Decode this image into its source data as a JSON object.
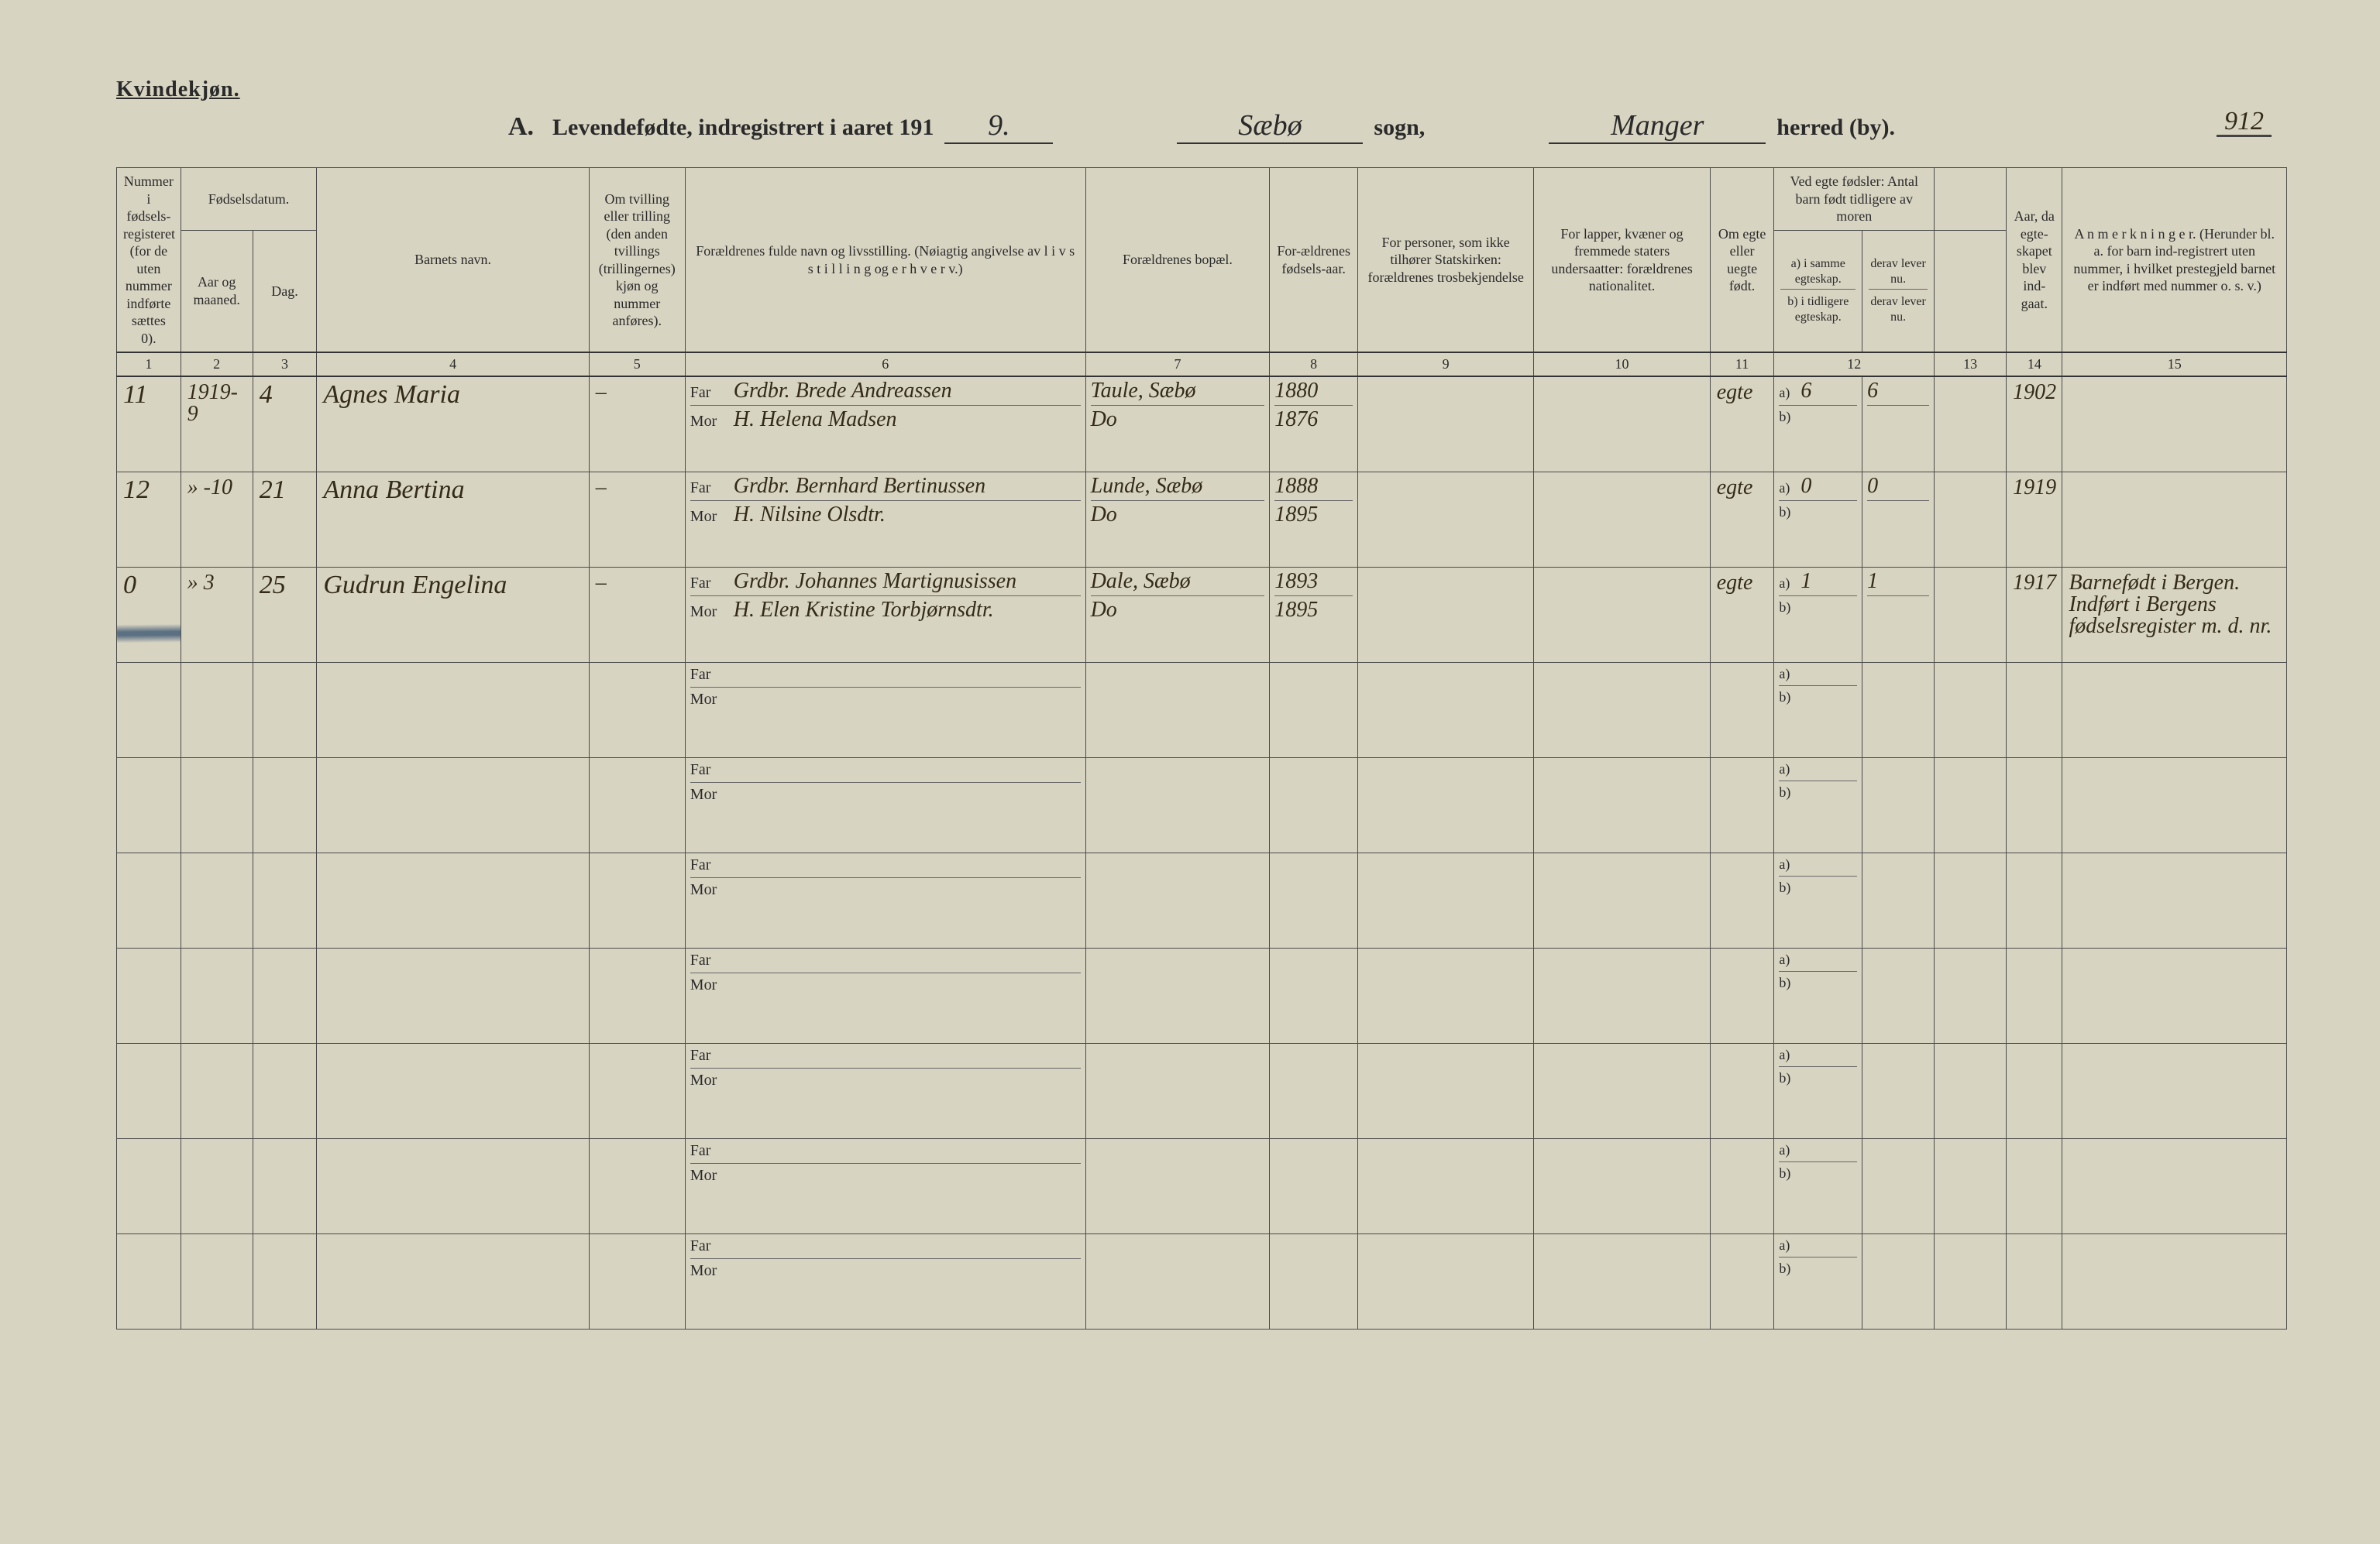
{
  "corner_label": "Kvindekjøn.",
  "title": {
    "A": "A.",
    "main": "Levendefødte, indregistrert i aaret 191",
    "year_suffix": "9.",
    "sogn_value": "Sæbø",
    "sogn_label": "sogn,",
    "herred_value": "Manger",
    "herred_label": "herred (by)."
  },
  "page_number": "912",
  "headers": {
    "c1": "Nummer i fødsels-registeret (for de uten nummer indførte sættes 0).",
    "c_dob_group": "Fødselsdatum.",
    "c2": "Aar og maaned.",
    "c3": "Dag.",
    "c4": "Barnets navn.",
    "c5": "Om tvilling eller trilling (den anden tvillings (trillingernes) kjøn og nummer anføres).",
    "c6": "Forældrenes fulde navn og livsstilling. (Nøiagtig angivelse av l i v s s t i l l i n g og e r h v e r v.)",
    "c7": "Forældrenes bopæl.",
    "c8": "For-ældrenes fødsels-aar.",
    "c9": "For personer, som ikke tilhører Statskirken: forældrenes trosbekjendelse",
    "c10": "For lapper, kvæner og fremmede staters undersaatter: forældrenes nationalitet.",
    "c11": "Om egte eller uegte født.",
    "c12_group": "Ved egte fødsler: Antal barn født tidligere av moren",
    "c12a": "a) i samme egteskap.",
    "c12b": "b) i tidligere egteskap.",
    "c13_group_blank": "",
    "c13a": "derav lever nu.",
    "c13b": "derav lever nu.",
    "c14": "Aar, da egte-skapet blev ind-gaat.",
    "c15": "A n m e r k n i n g e r. (Herunder bl. a. for barn ind-registrert uten nummer, i hvilket prestegjeld barnet er indført med nummer o. s. v.)"
  },
  "parent_labels": {
    "far": "Far",
    "mor": "Mor"
  },
  "ab_labels": {
    "a": "a)",
    "b": "b)"
  },
  "colnums": [
    "1",
    "2",
    "3",
    "4",
    "5",
    "6",
    "7",
    "8",
    "9",
    "10",
    "11",
    "12",
    "",
    "13",
    "14",
    "15"
  ],
  "entries": [
    {
      "num": "11",
      "year_month": "1919-9",
      "day": "4",
      "name": "Agnes Maria",
      "twin": "–",
      "far": "Grdbr. Brede Andreassen",
      "mor": "H. Helena Madsen",
      "bopel_far": "Taule, Sæbø",
      "bopel_mor": "Do",
      "faryear": "1880",
      "moryear": "1876",
      "c9": "",
      "c10": "",
      "legit": "egte",
      "a12": "6",
      "b12": "",
      "a13": "6",
      "b13": "",
      "c14": "1902",
      "remarks": ""
    },
    {
      "num": "12",
      "year_month": "» -10",
      "day": "21",
      "name": "Anna Bertina",
      "twin": "–",
      "far": "Grdbr. Bernhard Bertinussen",
      "mor": "H. Nilsine Olsdtr.",
      "bopel_far": "Lunde, Sæbø",
      "bopel_mor": "Do",
      "faryear": "1888",
      "moryear": "1895",
      "c9": "",
      "c10": "",
      "legit": "egte",
      "a12": "0",
      "b12": "",
      "a13": "0",
      "b13": "",
      "c14": "1919",
      "remarks": ""
    },
    {
      "struck": true,
      "num": "0",
      "year_month": "» 3",
      "day": "25",
      "name": "Gudrun Engelina",
      "twin": "–",
      "far": "Grdbr. Johannes Martignusissen",
      "mor": "H. Elen Kristine Torbjørnsdtr.",
      "bopel_far": "Dale, Sæbø",
      "bopel_mor": "Do",
      "faryear": "1893",
      "moryear": "1895",
      "c9": "",
      "c10": "",
      "legit": "egte",
      "a12": "1",
      "b12": "",
      "a13": "1",
      "b13": "",
      "c14": "1917",
      "remarks": "Barnefødt i Bergen. Indført i Bergens fødselsregister m. d. nr."
    }
  ],
  "blank_rows": 7,
  "style": {
    "background_color": "#d8d4c2",
    "ink_color": "#2a2a2a",
    "hand_color": "#332a18",
    "border_color": "#4a4a4a",
    "strike_color": "rgba(70,95,120,0.85)",
    "title_fontsize_pt": 22,
    "header_fontsize_pt": 13,
    "hand_fontsize_pt": 24
  }
}
